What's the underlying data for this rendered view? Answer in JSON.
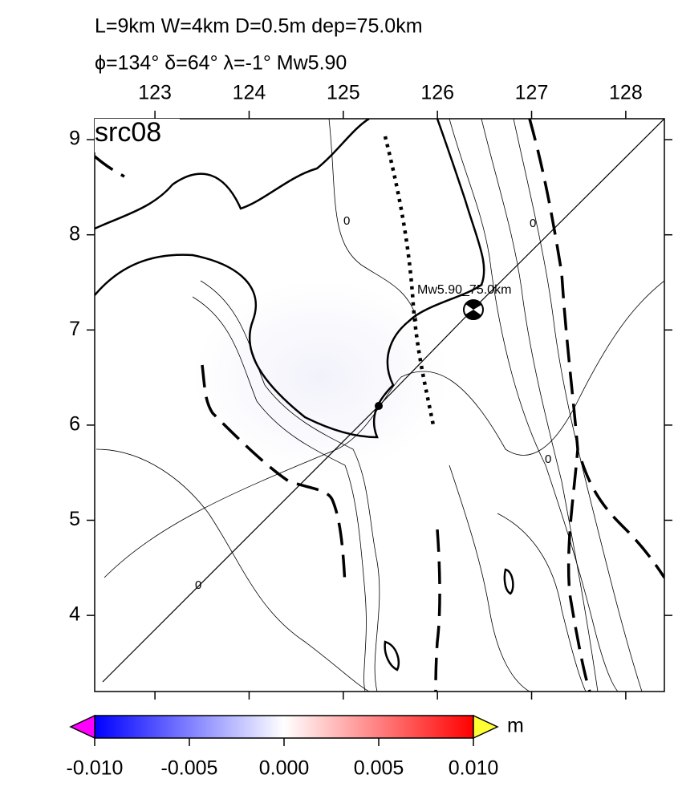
{
  "header": {
    "line1": "L=9km W=4km D=0.5m dep=75.0km",
    "line2": "ϕ=134° δ=64° λ=-1° Mw5.90"
  },
  "map": {
    "label": "src08",
    "xlim": [
      122.36,
      128.41
    ],
    "ylim": [
      3.2,
      9.22
    ],
    "xticks": [
      123,
      124,
      125,
      126,
      127,
      128
    ],
    "yticks": [
      4,
      5,
      6,
      7,
      8,
      9
    ],
    "source_label": "Mw5.90_75.0km",
    "contour_labels": [
      "0",
      "0",
      "0",
      "0"
    ]
  },
  "colorbar": {
    "lim": [
      -0.01,
      0.01
    ],
    "ticks": [
      {
        "value": -0.01,
        "label": "-0.010"
      },
      {
        "value": -0.005,
        "label": "-0.005"
      },
      {
        "value": 0,
        "label": "0.000"
      },
      {
        "value": 0.005,
        "label": "0.005"
      },
      {
        "value": 0.01,
        "label": "0.010"
      }
    ],
    "unit": "m"
  }
}
